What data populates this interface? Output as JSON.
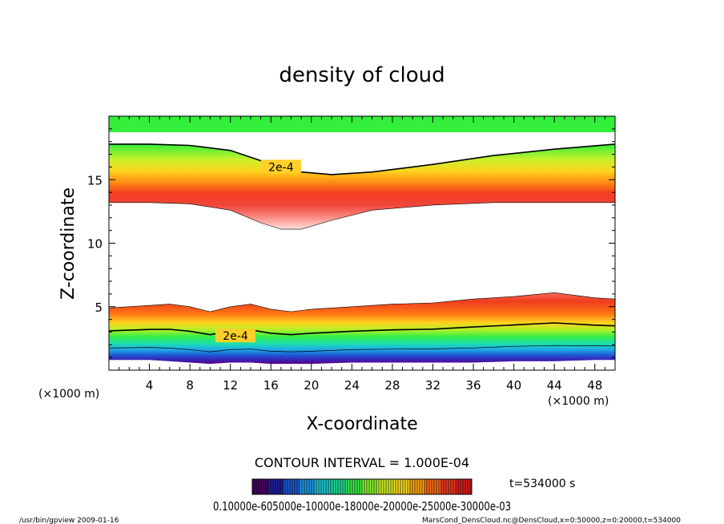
{
  "chart_data": {
    "type": "contour",
    "title": "density of cloud",
    "xlabel": "X-coordinate",
    "ylabel": "Z-coordinate",
    "x_unit": "(×1000 m)",
    "z_unit": "(×1000 m)",
    "xlim": [
      0,
      50
    ],
    "ylim": [
      0,
      20
    ],
    "x_ticks": [
      4,
      8,
      12,
      16,
      20,
      24,
      28,
      32,
      36,
      40,
      44,
      48
    ],
    "y_ticks": [
      5,
      10,
      15
    ],
    "contour_interval_text": "CONTOUR INTERVAL = 1.000E-04",
    "time_text": "t=534000 s",
    "contour_labels": [
      {
        "text": "2e-4",
        "x": 17,
        "z": 16.0
      },
      {
        "text": "2e-4",
        "x": 12.5,
        "z": 2.7
      }
    ],
    "upper_layer": {
      "x": [
        0,
        4,
        8,
        12,
        15,
        17,
        19,
        22,
        26,
        32,
        38,
        44,
        50
      ],
      "top": [
        17.8,
        17.8,
        17.7,
        17.3,
        16.5,
        15.9,
        15.6,
        15.4,
        15.6,
        16.2,
        16.9,
        17.4,
        17.8
      ],
      "bottom": [
        13.2,
        13.2,
        13.1,
        12.6,
        11.6,
        11.1,
        11.1,
        11.8,
        12.6,
        13.0,
        13.2,
        13.2,
        13.2
      ]
    },
    "lower_layer": {
      "x": [
        0,
        4,
        6,
        8,
        10,
        12,
        14,
        16,
        18,
        20,
        24,
        28,
        32,
        36,
        40,
        44,
        48,
        50
      ],
      "top": [
        4.9,
        5.1,
        5.2,
        5.0,
        4.6,
        5.0,
        5.2,
        4.8,
        4.6,
        4.8,
        5.0,
        5.2,
        5.3,
        5.6,
        5.8,
        6.1,
        5.7,
        5.6
      ],
      "bottom": [
        0.8,
        0.8,
        0.7,
        0.6,
        0.5,
        0.6,
        0.6,
        0.5,
        0.5,
        0.5,
        0.6,
        0.6,
        0.6,
        0.6,
        0.7,
        0.7,
        0.8,
        0.8
      ]
    },
    "colorbar": {
      "label_text": "0.10000e-605000e-10000e-18000e-20000e-25000e-30000e-03",
      "colors": [
        "#4a0064",
        "#2020a0",
        "#1e5ad2",
        "#1e9be6",
        "#1ecbd2",
        "#1ee196",
        "#3cf04b",
        "#8cf532",
        "#d2f028",
        "#fae11e",
        "#ffaa14",
        "#ff6e14",
        "#f03c1e",
        "#e11e1e"
      ]
    }
  },
  "footer": {
    "left": "/usr/bin/gpview  2009-01-16",
    "right": "MarsCond_DensCloud.nc@DensCloud,x=0:50000,z=0:20000,t=534000"
  }
}
